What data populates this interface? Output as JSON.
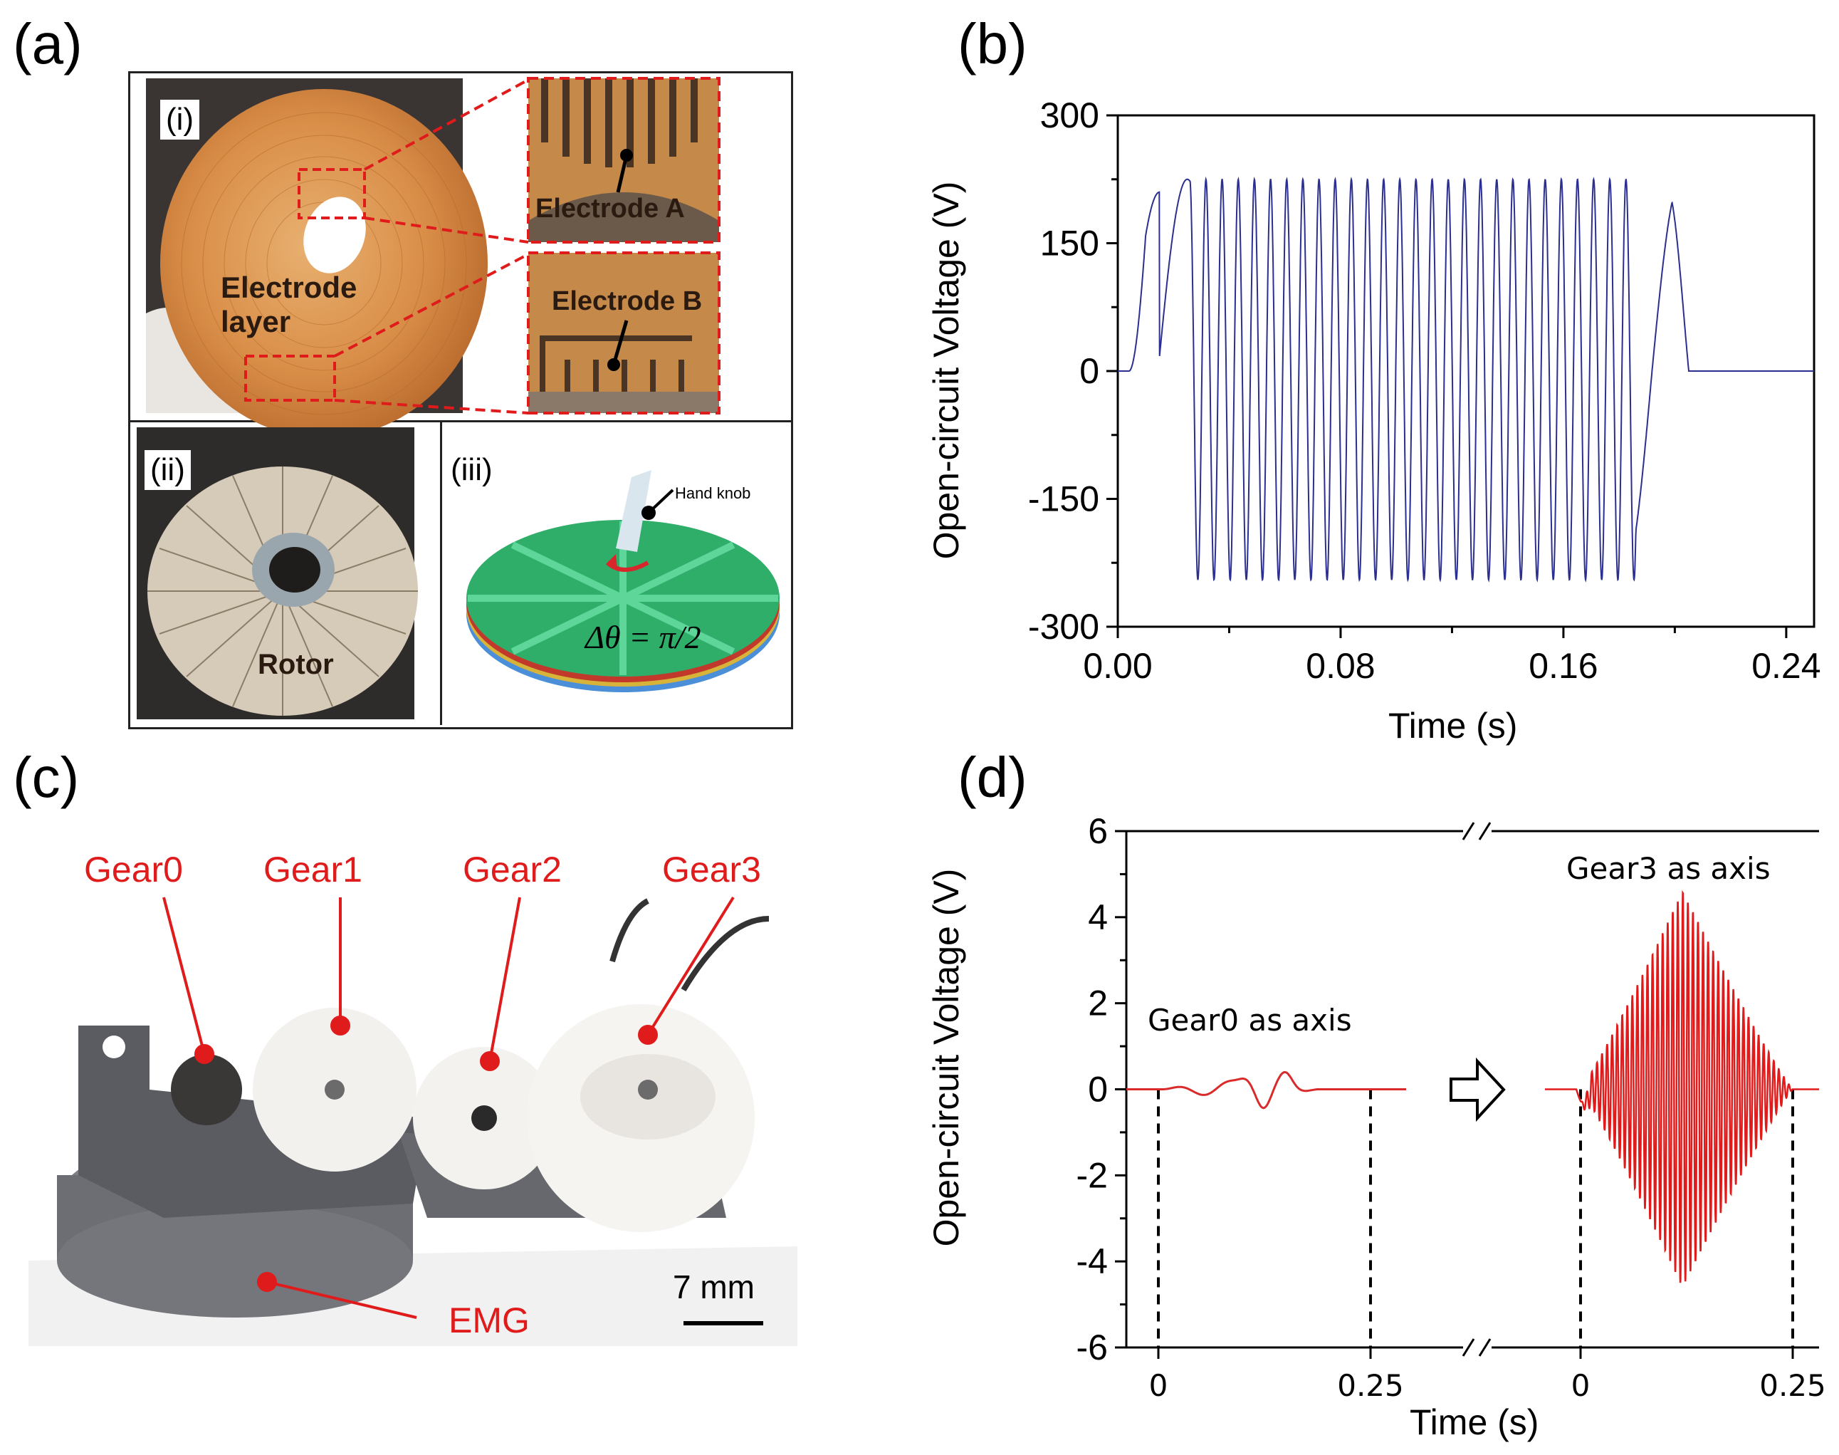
{
  "panels": {
    "a": "(a)",
    "b": "(b)",
    "c": "(c)",
    "d": "(d)"
  },
  "panel_a": {
    "sub_i": "(i)",
    "sub_ii": "(ii)",
    "sub_iii": "(iii)",
    "electrode_layer": [
      "Electrode",
      "layer"
    ],
    "electrode_a": "Electrode A",
    "electrode_b": "Electrode B",
    "rotor": "Rotor",
    "hand_knob": "Hand knob",
    "formula": "Δθ = π/2"
  },
  "panel_c": {
    "gears": [
      "Gear0",
      "Gear1",
      "Gear2",
      "Gear3"
    ],
    "emg": "EMG",
    "scale": "7 mm"
  },
  "chart_data": [
    {
      "panel": "b",
      "type": "line",
      "xlabel": "Time (s)",
      "ylabel": "Open-circuit Voltage (V)",
      "xlim": [
        0.0,
        0.25
      ],
      "ylim": [
        -300,
        300
      ],
      "xticks": [
        "0.00",
        "0.08",
        "0.16",
        "0.24"
      ],
      "yticks": [
        "-300",
        "-150",
        "0",
        "150",
        "300"
      ],
      "series": [
        {
          "name": "open-circuit voltage",
          "color": "#2b2f8f",
          "description_points": {
            "start": 0.0,
            "end_active": 0.205,
            "period_approx": 0.0055,
            "amplitude_peak": 230,
            "amplitude_trough": -252
          }
        }
      ]
    },
    {
      "panel": "d",
      "type": "line",
      "xlabel": "Time (s)",
      "ylabel": "Open-circuit Voltage (V)",
      "ylim": [
        -6,
        6
      ],
      "yticks": [
        "-6",
        "-4",
        "-2",
        "0",
        "2",
        "4",
        "6"
      ],
      "xticks_left": [
        "0",
        "0.25"
      ],
      "xticks_right": [
        "0",
        "0.25"
      ],
      "annotations": [
        "Gear0 as axis",
        "Gear3 as axis"
      ],
      "series": [
        {
          "name": "Gear0 as axis",
          "color": "#d92b2b",
          "peak": 0.33,
          "trough": -0.38
        },
        {
          "name": "Gear3 as axis",
          "color": "#e01b1b",
          "peak": 4.6,
          "trough": -4.6
        }
      ]
    }
  ]
}
